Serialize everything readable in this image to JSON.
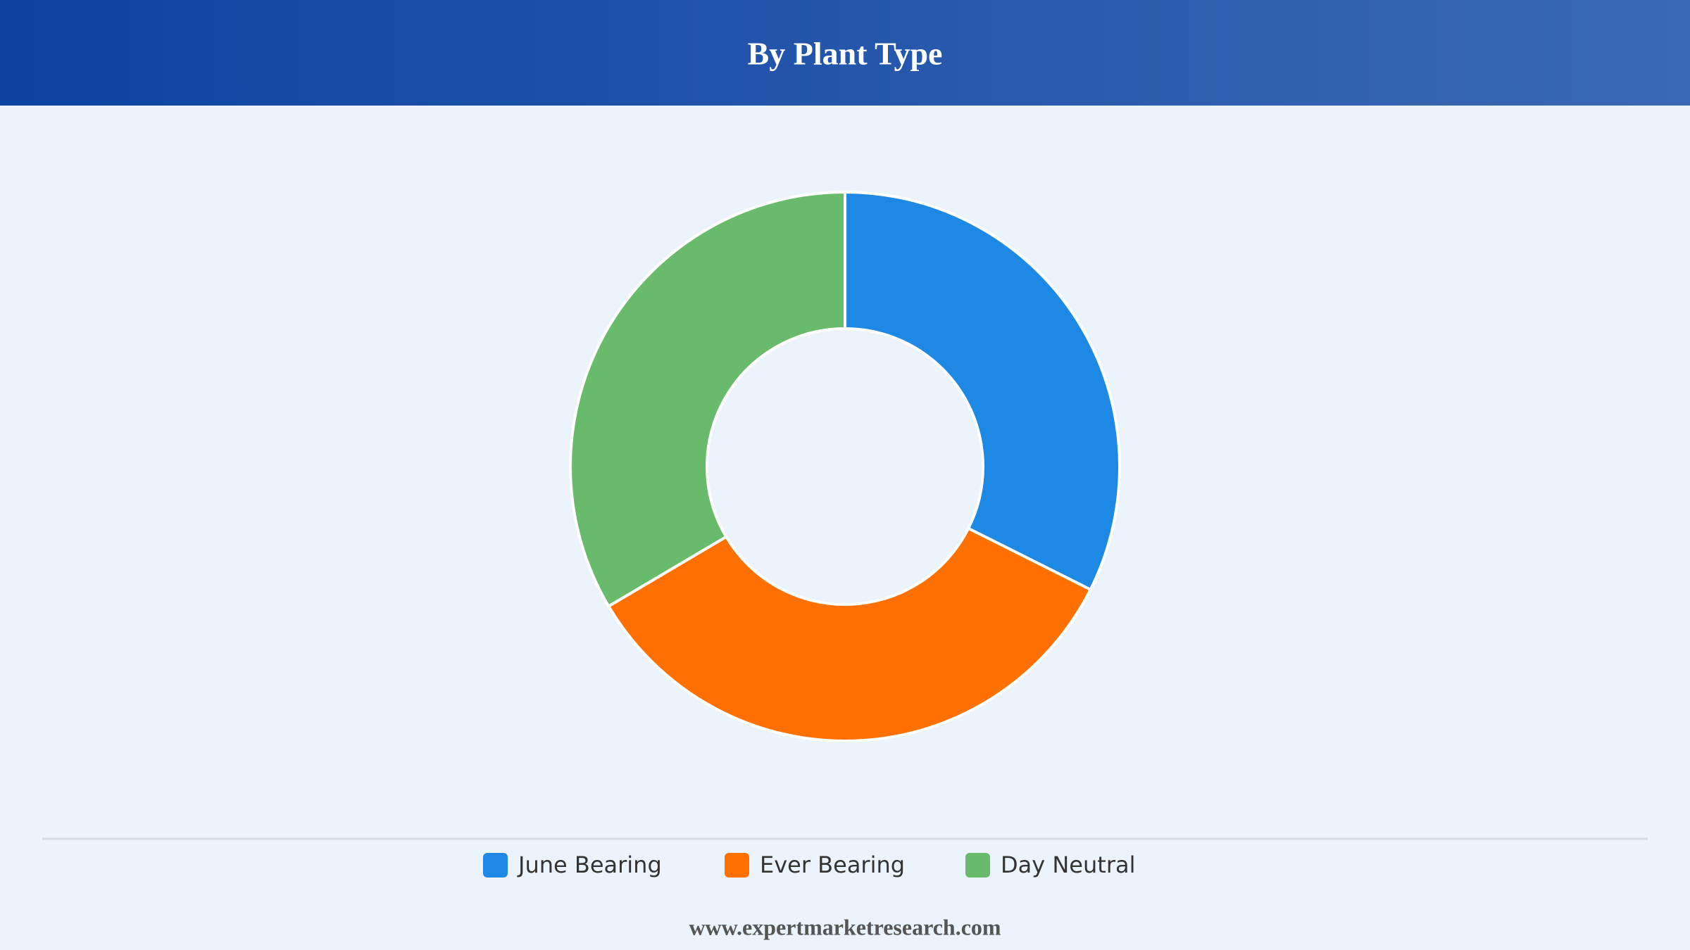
{
  "chart_data": {
    "type": "donut",
    "title": "By Plant Type",
    "categories": [
      "June Bearing",
      "Ever Bearing",
      "Day Neutral"
    ],
    "values": [
      32.4,
      34.1,
      33.5
    ],
    "colors": [
      "#1e88e5",
      "#ff7000",
      "#69bb6c"
    ],
    "source": "www.expertmarketresearch.com"
  }
}
